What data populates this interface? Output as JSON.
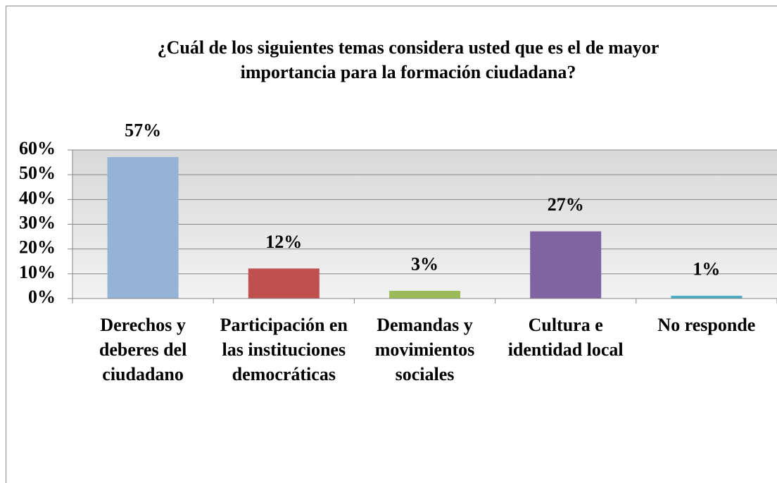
{
  "chart_data": {
    "type": "bar",
    "title": "¿Cuál de los siguientes temas considera usted que es el de mayor importancia para la formación ciudadana?",
    "categories": [
      "Derechos y deberes del ciudadano",
      "Participación en las instituciones democráticas",
      "Demandas y movimientos sociales",
      "Cultura e identidad local",
      "No responde"
    ],
    "values": [
      57,
      12,
      3,
      27,
      1
    ],
    "value_labels": [
      "57%",
      "12%",
      "3%",
      "27%",
      "1%"
    ],
    "colors": [
      "#95b3d7",
      "#c0504d",
      "#9bbb59",
      "#8064a2",
      "#4bacc6"
    ],
    "ylim": [
      0,
      60
    ],
    "yticks": [
      {
        "value": 0,
        "label": "0%"
      },
      {
        "value": 10,
        "label": "10%"
      },
      {
        "value": 20,
        "label": "20%"
      },
      {
        "value": 30,
        "label": "30%"
      },
      {
        "value": 40,
        "label": "40%"
      },
      {
        "value": 50,
        "label": "50%"
      },
      {
        "value": 60,
        "label": "60%"
      }
    ],
    "grid": true
  }
}
